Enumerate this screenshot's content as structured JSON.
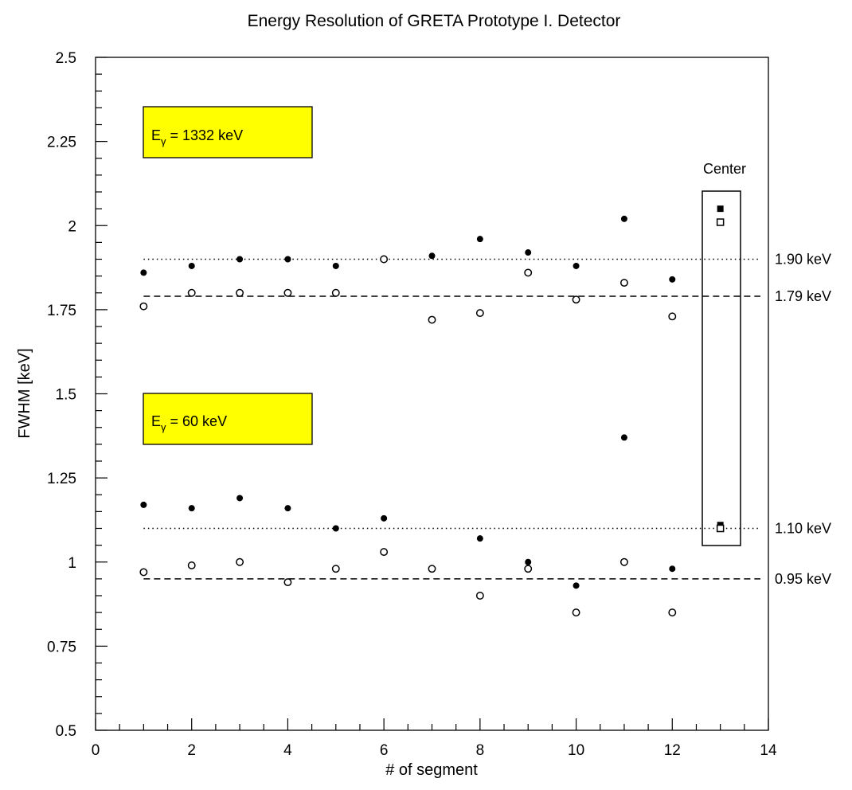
{
  "chart_data": {
    "type": "scatter",
    "title": "Energy Resolution of GRETA Prototype I. Detector",
    "xlabel": "# of segment",
    "ylabel": "FWHM [keV]",
    "xlim": [
      0,
      14
    ],
    "ylim": [
      0.5,
      2.5
    ],
    "x_ticks": [
      0,
      2,
      4,
      6,
      8,
      10,
      12,
      14
    ],
    "x_tick_labels": [
      "0",
      "2",
      "4",
      "6",
      "8",
      "10",
      "12",
      "14"
    ],
    "y_ticks": [
      0.5,
      0.75,
      1,
      1.25,
      1.5,
      1.75,
      2,
      2.25,
      2.5
    ],
    "y_tick_labels": [
      "0.5",
      "0.75",
      "1",
      "1.25",
      "1.5",
      "1.75",
      "2",
      "2.25",
      "2.5"
    ],
    "grid": false,
    "boxes": [
      {
        "base": "E",
        "sub": "γ",
        "rest": " = 1332 keV",
        "color": "#ffff00"
      },
      {
        "base": "E",
        "sub": "γ",
        "rest": " = 60 keV",
        "color": "#ffff00"
      }
    ],
    "center_label": "Center",
    "series": [
      {
        "marker": "filled-circle",
        "x": [
          1,
          2,
          3,
          4,
          5,
          6,
          7,
          8,
          9,
          10,
          11,
          12
        ],
        "y": [
          1.86,
          1.88,
          1.9,
          1.9,
          1.88,
          1.9,
          1.91,
          1.96,
          1.92,
          1.88,
          2.02,
          1.84
        ]
      },
      {
        "marker": "open-circle",
        "x": [
          1,
          2,
          3,
          4,
          5,
          6,
          7,
          8,
          9,
          10,
          11,
          12
        ],
        "y": [
          1.76,
          1.8,
          1.8,
          1.8,
          1.8,
          1.9,
          1.72,
          1.74,
          1.86,
          1.78,
          1.83,
          1.73
        ]
      },
      {
        "marker": "filled-circle",
        "x": [
          1,
          2,
          3,
          4,
          5,
          6,
          7,
          8,
          9,
          10,
          11,
          12
        ],
        "y": [
          1.17,
          1.16,
          1.19,
          1.16,
          1.1,
          1.13,
          0.98,
          1.07,
          1.0,
          0.93,
          1.37,
          0.98
        ]
      },
      {
        "marker": "open-circle",
        "x": [
          1,
          2,
          3,
          4,
          5,
          6,
          7,
          8,
          9,
          10,
          11,
          12
        ],
        "y": [
          0.97,
          0.99,
          1.0,
          0.94,
          0.98,
          1.03,
          0.98,
          0.9,
          0.98,
          0.85,
          1.0,
          0.85
        ]
      },
      {
        "marker": "filled-square",
        "x": [
          13,
          13
        ],
        "y": [
          2.05,
          1.11
        ]
      },
      {
        "marker": "open-square",
        "x": [
          13,
          13
        ],
        "y": [
          2.01,
          1.1
        ]
      }
    ],
    "reference_lines": [
      {
        "y": 1.9,
        "style": "dotted",
        "label": "1.90 keV"
      },
      {
        "y": 1.79,
        "style": "dashed",
        "label": "1.79 keV"
      },
      {
        "y": 1.1,
        "style": "dotted",
        "label": "1.10 keV"
      },
      {
        "y": 0.95,
        "style": "dashed",
        "label": "0.95 keV"
      }
    ]
  }
}
